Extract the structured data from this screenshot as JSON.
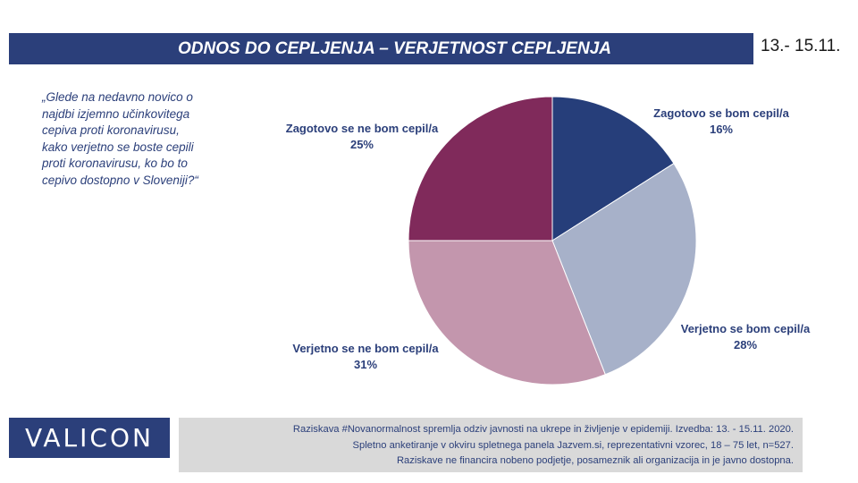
{
  "header": {
    "title": "ODNOS DO CEPLJENJA – VERJETNOST CEPLJENJA",
    "date": "13.- 15.11."
  },
  "question": "„Glede na nedavno novico o najdbi izjemno učinkovitega cepiva proti koronavirusu, kako verjetno se boste cepili proti koronavirusu, ko bo to cepivo dostopno v Sloveniji?“",
  "chart_data": {
    "type": "pie",
    "title": "",
    "start_angle_deg": 0,
    "direction": "clockwise",
    "slices": [
      {
        "name": "Zagotovo se bom cepil/a",
        "value": 16,
        "label": "16%",
        "color": "#263e7a"
      },
      {
        "name": "Verjetno se bom cepil/a",
        "value": 28,
        "label": "28%",
        "color": "#a7b1c9"
      },
      {
        "name": "Verjetno se ne bom cepil/a",
        "value": 31,
        "label": "31%",
        "color": "#c396ad"
      },
      {
        "name": "Zagotovo se ne bom cepil/a",
        "value": 25,
        "label": "25%",
        "color": "#802a5b"
      }
    ]
  },
  "brand": {
    "logo_text": "VALICON",
    "color": "#2b3f7a"
  },
  "footer": {
    "lines": [
      "Raziskava #Novanormalnost spremlja odziv javnosti na ukrepe in življenje v epidemiji. Izvedba: 13. - 15.11. 2020.",
      "Spletno anketiranje v okviru spletnega panela Jazvem.si, reprezentativni vzorec, 18 – 75 let, n=527.",
      "Raziskave ne financira nobeno podjetje, posameznik ali organizacija in je javno dostopna."
    ]
  }
}
